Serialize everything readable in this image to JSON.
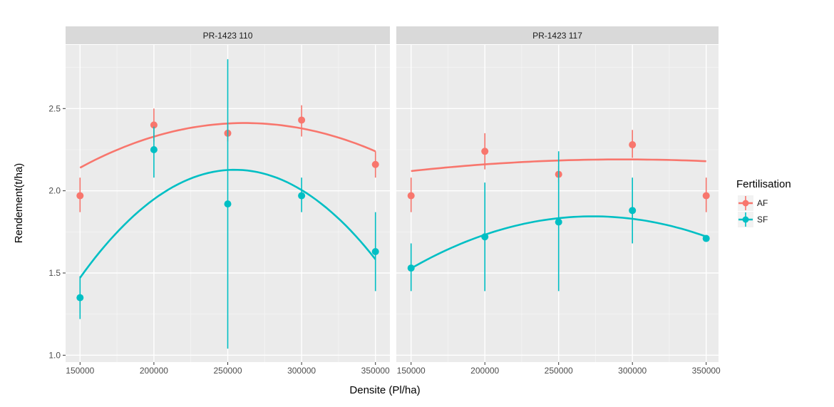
{
  "chart_data": {
    "type": "scatter",
    "subtype": "pointrange with quadratic fit, faceted",
    "xlabel": "Densite (Pl/ha)",
    "ylabel": "Rendement(t/ha)",
    "xlim": [
      140000,
      360000
    ],
    "ylim": [
      0.94,
      2.9
    ],
    "x_ticks": [
      150000,
      200000,
      250000,
      300000,
      350000
    ],
    "x_tick_labels": [
      "150000",
      "200000",
      "250000",
      "300000",
      "350000"
    ],
    "y_ticks": [
      1.0,
      1.5,
      2.0,
      2.5
    ],
    "y_tick_labels": [
      "1.0",
      "1.5",
      "2.0",
      "2.5"
    ],
    "grid": true,
    "legend": {
      "title": "Fertilisation",
      "placement": "right",
      "entries": [
        "AF",
        "SF"
      ]
    },
    "colors": {
      "AF": "#F8766D",
      "SF": "#00BFC4",
      "panel": "#EBEBEB",
      "strip": "#D9D9D9"
    },
    "facets": [
      {
        "title": "PR-1423 110",
        "series": [
          {
            "name": "AF",
            "x": [
              150000,
              200000,
              250000,
              300000,
              350000
            ],
            "y": [
              1.97,
              2.4,
              2.35,
              2.43,
              2.16
            ],
            "ymin": [
              1.87,
              2.3,
              2.3,
              2.33,
              2.08
            ],
            "ymax": [
              2.08,
              2.5,
              2.4,
              2.52,
              2.24
            ],
            "fit_x": [
              150000,
              200000,
              250000,
              262000,
              300000,
              350000
            ],
            "fit_y": [
              2.14,
              2.33,
              2.41,
              2.41,
              2.38,
              2.24
            ]
          },
          {
            "name": "SF",
            "x": [
              150000,
              200000,
              250000,
              300000,
              350000
            ],
            "y": [
              1.35,
              2.25,
              1.92,
              1.97,
              1.63
            ],
            "ymin": [
              1.22,
              2.08,
              1.04,
              1.87,
              1.39
            ],
            "ymax": [
              1.48,
              2.39,
              2.8,
              2.08,
              1.87
            ],
            "fit_x": [
              150000,
              200000,
              255000,
              300000,
              350000
            ],
            "fit_y": [
              1.47,
              1.95,
              2.13,
              2.0,
              1.585
            ]
          }
        ]
      },
      {
        "title": "PR-1423 117",
        "series": [
          {
            "name": "AF",
            "x": [
              150000,
              200000,
              250000,
              300000,
              350000
            ],
            "y": [
              1.97,
              2.24,
              2.1,
              2.28,
              1.97
            ],
            "ymin": [
              1.87,
              2.13,
              2.05,
              2.2,
              1.87
            ],
            "ymax": [
              2.08,
              2.35,
              2.15,
              2.37,
              2.08
            ],
            "fit_x": [
              150000,
              200000,
              250000,
              300000,
              350000
            ],
            "fit_y": [
              2.12,
              2.16,
              2.185,
              2.19,
              2.18
            ]
          },
          {
            "name": "SF",
            "x": [
              150000,
              200000,
              250000,
              300000,
              350000
            ],
            "y": [
              1.53,
              1.72,
              1.81,
              1.88,
              1.71
            ],
            "ymin": [
              1.39,
              1.39,
              1.39,
              1.68,
              1.69
            ],
            "ymax": [
              1.68,
              2.05,
              2.24,
              2.08,
              1.73
            ],
            "fit_x": [
              150000,
              200000,
              250000,
              275000,
              300000,
              350000
            ],
            "fit_y": [
              1.53,
              1.73,
              1.83,
              1.85,
              1.83,
              1.72
            ]
          }
        ]
      }
    ]
  }
}
